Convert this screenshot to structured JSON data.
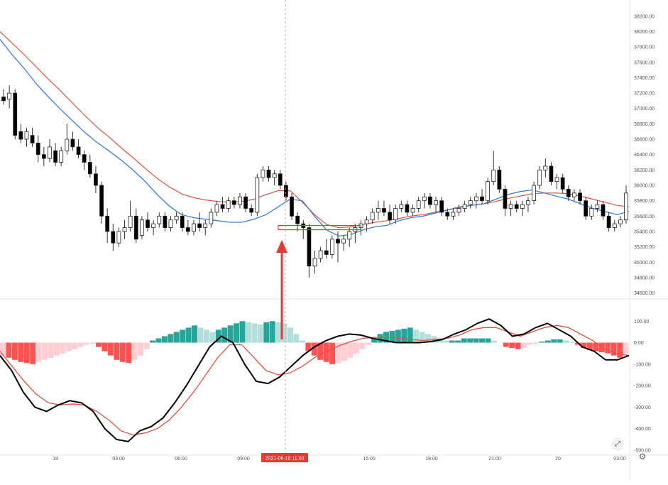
{
  "chart_data": {
    "type": "candlestick",
    "instrument_note": "",
    "price_pane": {
      "y_ticks": [
        "38200.00",
        "38000.00",
        "37800.00",
        "37600.00",
        "37400.00",
        "37200.00",
        "37000.00",
        "36800.00",
        "36600.00",
        "36400.00",
        "36200.00",
        "36000.00",
        "35800.00",
        "35600.00",
        "35400.00",
        "35200.00",
        "35000.00",
        "34800.00",
        "34600.00"
      ],
      "ylim": [
        34550,
        38300
      ],
      "candles": [
        [
          37150,
          37250,
          37050,
          37100
        ],
        [
          37120,
          37300,
          37000,
          37200
        ],
        [
          37200,
          37250,
          36600,
          36650
        ],
        [
          36700,
          36800,
          36550,
          36600
        ],
        [
          36600,
          36750,
          36500,
          36700
        ],
        [
          36650,
          36750,
          36500,
          36550
        ],
        [
          36550,
          36650,
          36300,
          36400
        ],
        [
          36400,
          36500,
          36250,
          36350
        ],
        [
          36350,
          36600,
          36300,
          36500
        ],
        [
          36450,
          36550,
          36250,
          36300
        ],
        [
          36300,
          36500,
          36250,
          36450
        ],
        [
          36450,
          36800,
          36400,
          36600
        ],
        [
          36600,
          36700,
          36450,
          36500
        ],
        [
          36500,
          36600,
          36350,
          36400
        ],
        [
          36400,
          36450,
          36200,
          36300
        ],
        [
          36300,
          36400,
          36100,
          36150
        ],
        [
          36150,
          36250,
          35900,
          36000
        ],
        [
          36000,
          36050,
          35500,
          35600
        ],
        [
          35600,
          35700,
          35250,
          35400
        ],
        [
          35400,
          35500,
          35150,
          35250
        ],
        [
          35250,
          35450,
          35200,
          35400
        ],
        [
          35400,
          35550,
          35300,
          35450
        ],
        [
          35450,
          35800,
          35400,
          35600
        ],
        [
          35600,
          35700,
          35250,
          35300
        ],
        [
          35350,
          35600,
          35300,
          35550
        ],
        [
          35550,
          35650,
          35400,
          35450
        ],
        [
          35450,
          35550,
          35350,
          35500
        ],
        [
          35500,
          35650,
          35450,
          35600
        ],
        [
          35600,
          35650,
          35400,
          35450
        ],
        [
          35450,
          35600,
          35400,
          35550
        ],
        [
          35550,
          35650,
          35500,
          35600
        ],
        [
          35600,
          35650,
          35400,
          35450
        ],
        [
          35450,
          35550,
          35350,
          35400
        ],
        [
          35400,
          35550,
          35350,
          35500
        ],
        [
          35500,
          35650,
          35400,
          35450
        ],
        [
          35450,
          35550,
          35350,
          35500
        ],
        [
          35500,
          35700,
          35450,
          35650
        ],
        [
          35650,
          35800,
          35600,
          35750
        ],
        [
          35750,
          35850,
          35650,
          35700
        ],
        [
          35700,
          35850,
          35650,
          35800
        ],
        [
          35800,
          35850,
          35700,
          35750
        ],
        [
          35750,
          35900,
          35700,
          35850
        ],
        [
          35850,
          35900,
          35650,
          35700
        ],
        [
          35700,
          35750,
          35600,
          35650
        ],
        [
          35650,
          36150,
          35600,
          36100
        ],
        [
          36100,
          36250,
          36050,
          36200
        ],
        [
          36200,
          36250,
          36050,
          36100
        ],
        [
          36100,
          36200,
          36000,
          36150
        ],
        [
          36150,
          36200,
          35950,
          36000
        ],
        [
          36000,
          36050,
          35800,
          35850
        ],
        [
          35850,
          35900,
          35550,
          35600
        ],
        [
          35600,
          35650,
          35400,
          35500
        ],
        [
          35500,
          35550,
          35300,
          35450
        ],
        [
          35450,
          35500,
          34800,
          34950
        ],
        [
          34950,
          35150,
          34850,
          35050
        ],
        [
          35050,
          35200,
          35000,
          35150
        ],
        [
          35150,
          35300,
          35050,
          35100
        ],
        [
          35100,
          35350,
          35050,
          35300
        ],
        [
          35300,
          35400,
          35000,
          35250
        ],
        [
          35250,
          35350,
          35150,
          35300
        ],
        [
          35300,
          35450,
          35200,
          35400
        ],
        [
          35400,
          35500,
          35250,
          35450
        ],
        [
          35450,
          35550,
          35350,
          35500
        ],
        [
          35500,
          35600,
          35400,
          35550
        ],
        [
          35550,
          35700,
          35500,
          35650
        ],
        [
          35650,
          35800,
          35550,
          35700
        ],
        [
          35700,
          35800,
          35600,
          35650
        ],
        [
          35650,
          35750,
          35500,
          35550
        ],
        [
          35550,
          35750,
          35500,
          35700
        ],
        [
          35700,
          35800,
          35650,
          35750
        ],
        [
          35750,
          35800,
          35600,
          35650
        ],
        [
          35650,
          35750,
          35600,
          35700
        ],
        [
          35700,
          35850,
          35650,
          35800
        ],
        [
          35800,
          35900,
          35700,
          35850
        ],
        [
          35850,
          35900,
          35700,
          35750
        ],
        [
          35750,
          35850,
          35650,
          35800
        ],
        [
          35800,
          35850,
          35600,
          35650
        ],
        [
          35650,
          35700,
          35550,
          35600
        ],
        [
          35600,
          35700,
          35550,
          35650
        ],
        [
          35650,
          35750,
          35600,
          35700
        ],
        [
          35700,
          35800,
          35650,
          35750
        ],
        [
          35750,
          35850,
          35700,
          35800
        ],
        [
          35800,
          35900,
          35700,
          35850
        ],
        [
          35850,
          35950,
          35750,
          35800
        ],
        [
          35800,
          36100,
          35750,
          36050
        ],
        [
          36050,
          36450,
          36000,
          36200
        ],
        [
          36200,
          36250,
          35900,
          35950
        ],
        [
          35950,
          36000,
          35600,
          35700
        ],
        [
          35700,
          35800,
          35600,
          35750
        ],
        [
          35750,
          35800,
          35650,
          35700
        ],
        [
          35700,
          35800,
          35600,
          35750
        ],
        [
          35750,
          35850,
          35650,
          35800
        ],
        [
          35800,
          36050,
          35750,
          36000
        ],
        [
          36000,
          36250,
          35950,
          36200
        ],
        [
          36200,
          36350,
          36100,
          36250
        ],
        [
          36250,
          36300,
          36000,
          36050
        ],
        [
          36050,
          36150,
          35950,
          36100
        ],
        [
          36100,
          36150,
          35900,
          35950
        ],
        [
          35950,
          36000,
          35800,
          35850
        ],
        [
          35850,
          35950,
          35800,
          35900
        ],
        [
          35900,
          35950,
          35750,
          35800
        ],
        [
          35800,
          35850,
          35550,
          35600
        ],
        [
          35600,
          35750,
          35550,
          35700
        ],
        [
          35700,
          35800,
          35650,
          35750
        ],
        [
          35750,
          35800,
          35550,
          35600
        ],
        [
          35600,
          35650,
          35400,
          35450
        ],
        [
          35450,
          35550,
          35400,
          35500
        ],
        [
          35500,
          35600,
          35450,
          35550
        ],
        [
          35550,
          36000,
          35500,
          35900
        ]
      ],
      "ema_fast": [
        37900,
        37700,
        37520,
        37320,
        37150,
        36990,
        36840,
        36690,
        36560,
        36450,
        36330,
        36200,
        36050,
        35880,
        35730,
        35620,
        35580,
        35560,
        35540,
        35520,
        35520,
        35560,
        35620,
        35720,
        35820,
        35800,
        35600,
        35420,
        35340,
        35360,
        35420,
        35460,
        35480,
        35540,
        35580,
        35600,
        35640,
        35680,
        35720,
        35740,
        35760,
        35820,
        35880,
        35920,
        35940,
        35900,
        35860,
        35820,
        35760,
        35700,
        35660,
        35620,
        35660
      ],
      "ema_slow": [
        38000,
        37850,
        37700,
        37540,
        37380,
        37230,
        37070,
        36910,
        36760,
        36630,
        36490,
        36360,
        36220,
        36090,
        35980,
        35890,
        35840,
        35810,
        35790,
        35780,
        35790,
        35820,
        35880,
        35930,
        35930,
        35780,
        35620,
        35490,
        35450,
        35460,
        35490,
        35520,
        35540,
        35570,
        35600,
        35620,
        35650,
        35680,
        35710,
        35740,
        35760,
        35790,
        35830,
        35860,
        35890,
        35900,
        35900,
        35890,
        35860,
        35820,
        35780,
        35740,
        35720
      ],
      "highlight_level": 35450
    },
    "macd_pane": {
      "y_ticks": [
        "100.00",
        "0.00",
        "-100.00",
        "-200.00",
        "-300.00",
        "-400.00",
        "-500.00"
      ],
      "ylim": [
        -520,
        190
      ],
      "histogram": [
        -60,
        -70,
        -80,
        -90,
        -95,
        -100,
        -90,
        -80,
        -70,
        -60,
        -50,
        -40,
        -30,
        -20,
        -10,
        -5,
        -20,
        -40,
        -60,
        -80,
        -90,
        -95,
        -80,
        -60,
        -30,
        10,
        20,
        30,
        40,
        50,
        60,
        70,
        80,
        70,
        60,
        50,
        60,
        70,
        80,
        90,
        100,
        95,
        90,
        85,
        95,
        100,
        95,
        90,
        70,
        40,
        10,
        -40,
        -60,
        -80,
        -90,
        -100,
        -95,
        -85,
        -70,
        -50,
        -30,
        -10,
        20,
        40,
        50,
        55,
        60,
        65,
        70,
        60,
        50,
        40,
        30,
        20,
        10,
        10,
        10,
        20,
        20,
        20,
        20,
        20,
        10,
        0,
        -20,
        -25,
        -30,
        -25,
        -10,
        -5,
        5,
        10,
        15,
        15,
        10,
        5,
        -10,
        -25,
        -35,
        -40,
        -45,
        -50,
        -60,
        -70,
        -50
      ],
      "macd_line": [
        -60,
        -130,
        -230,
        -300,
        -320,
        -290,
        -270,
        -280,
        -320,
        -400,
        -450,
        -460,
        -410,
        -390,
        -350,
        -280,
        -200,
        -110,
        -20,
        30,
        0,
        -100,
        -180,
        -190,
        -160,
        -110,
        -60,
        -20,
        10,
        30,
        40,
        35,
        20,
        10,
        0,
        0,
        0,
        5,
        15,
        40,
        60,
        90,
        110,
        80,
        30,
        40,
        70,
        90,
        60,
        30,
        -20,
        -40,
        -80,
        -80,
        -60
      ],
      "signal_line": [
        -40,
        -110,
        -180,
        -240,
        -280,
        -290,
        -285,
        -290,
        -320,
        -360,
        -410,
        -430,
        -420,
        -400,
        -360,
        -300,
        -230,
        -150,
        -70,
        -10,
        -10,
        -70,
        -130,
        -150,
        -140,
        -110,
        -70,
        -40,
        -15,
        5,
        20,
        25,
        25,
        20,
        15,
        10,
        15,
        20,
        35,
        60,
        70,
        70,
        50,
        30,
        50,
        70,
        80,
        70,
        40,
        10,
        -30,
        -50,
        -60
      ]
    },
    "x_tick_labels": [
      "19",
      "03:00",
      "06:00",
      "09:00",
      "12:00",
      "15:00",
      "18:00",
      "21:00",
      "20",
      "03:00"
    ],
    "crosshair_label": "2021-06-19   11:00",
    "grid": false,
    "legend": "none"
  },
  "colors": {
    "bull_body": "#ffffff",
    "bear_body": "#000000",
    "wick": "#333333",
    "ema_fast": "#3d7dd8",
    "ema_slow": "#e0523f",
    "macd_line": "#000000",
    "signal_line": "#e0523f",
    "hist_pos_strong": "#26a69a",
    "hist_pos_weak": "#b2dfdb",
    "hist_neg_strong": "#ff5252",
    "hist_neg_weak": "#ffcdd2",
    "arrow": "#e53935",
    "crosshair_badge": "#e53935"
  },
  "icons": {
    "settings": "gear-icon",
    "fullscreen": "fullscreen-icon"
  }
}
